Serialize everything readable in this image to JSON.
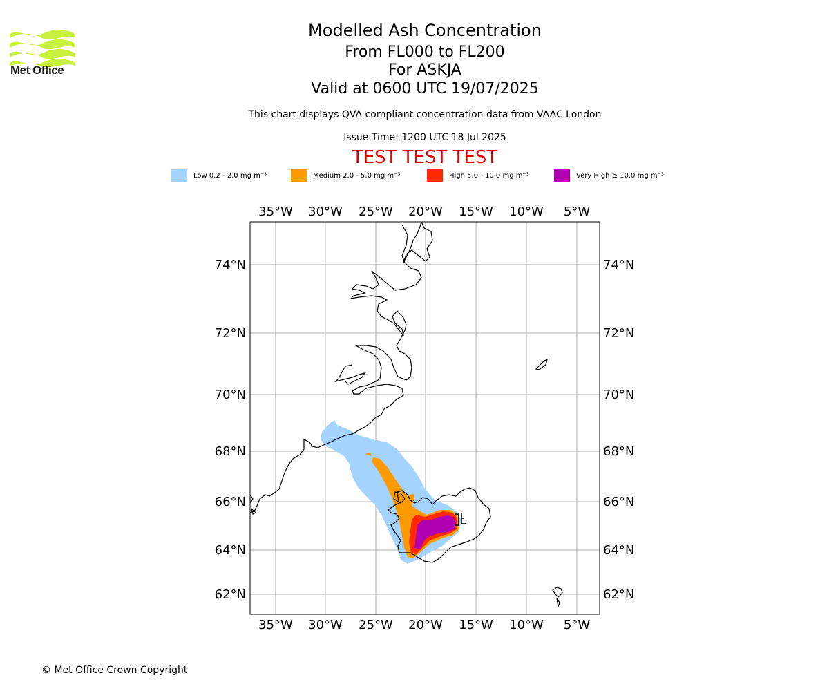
{
  "brand": {
    "name": "Met Office",
    "logo_color": "#c8f03c"
  },
  "header": {
    "title": "Modelled Ash Concentration",
    "level_range": "From FL000 to FL200",
    "volcano": "For ASKJA",
    "valid_time": "Valid at 0600 UTC 19/07/2025",
    "description": "This chart displays QVA compliant concentration data from VAAC London",
    "issue_time": "Issue Time: 1200 UTC 18 Jul 2025",
    "test_banner": "TEST TEST TEST"
  },
  "legend": [
    {
      "label": "Low 0.2 - 2.0 mg m⁻³",
      "color": "#a4d3ff"
    },
    {
      "label": "Medium 2.0 - 5.0 mg m⁻³",
      "color": "#ff9a00"
    },
    {
      "label": "High 5.0 - 10.0 mg m⁻³",
      "color": "#ff2a00"
    },
    {
      "label": "Very High ≥ 10.0 mg m⁻³",
      "color": "#b000b0"
    }
  ],
  "map": {
    "lon_ticks": [
      "35°W",
      "30°W",
      "25°W",
      "20°W",
      "15°W",
      "10°W",
      "5°W"
    ],
    "lat_ticks": [
      "74°N",
      "72°N",
      "70°N",
      "68°N",
      "66°N",
      "64°N",
      "62°N"
    ],
    "lon_values": [
      -35,
      -30,
      -25,
      -20,
      -15,
      -10,
      -5
    ],
    "lat_values": [
      74,
      72,
      70,
      68,
      66,
      64,
      62
    ],
    "grid_color": "#b0b0b0",
    "coast_color": "#000000"
  },
  "footer": {
    "copyright": "© Met Office Crown Copyright"
  }
}
